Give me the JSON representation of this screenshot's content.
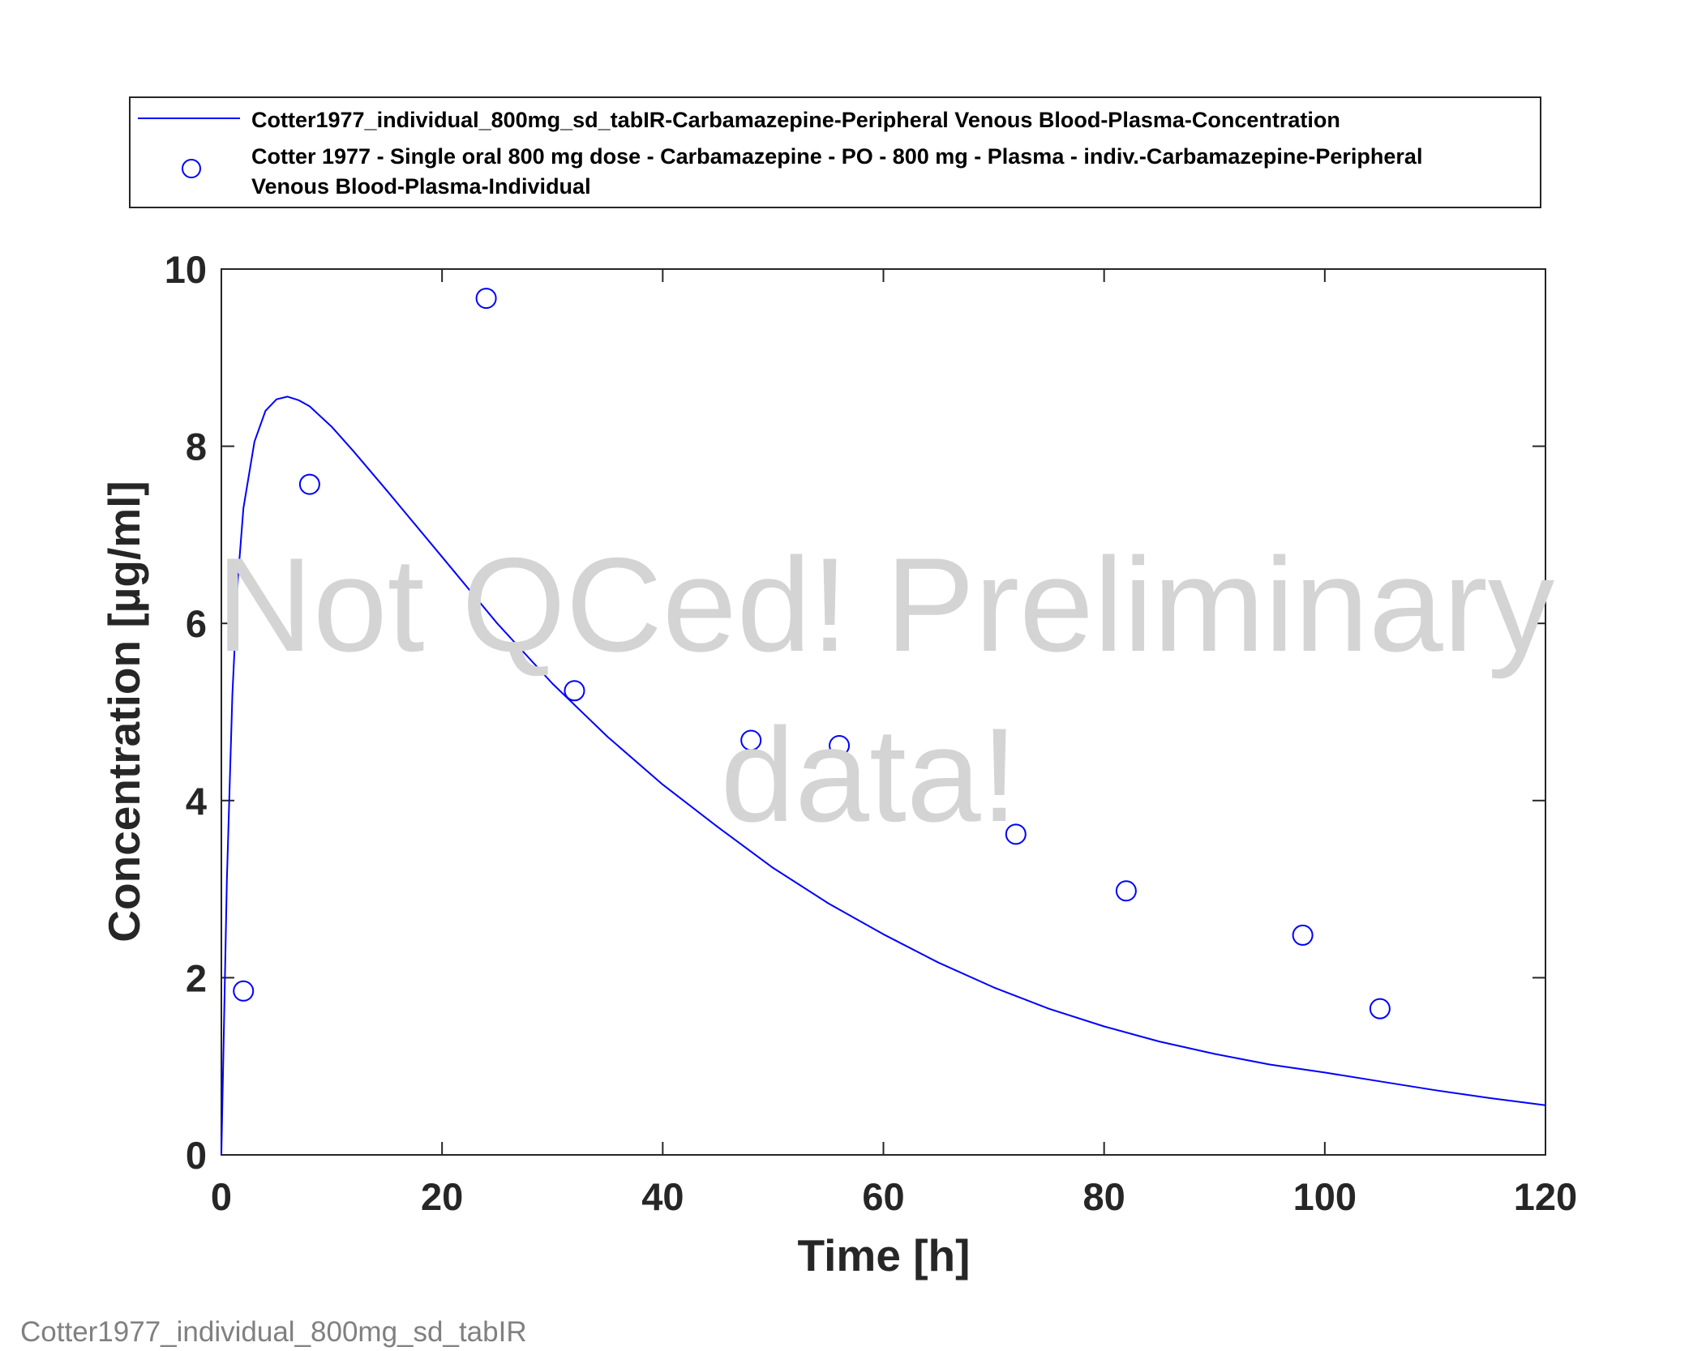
{
  "chart_data": {
    "type": "line",
    "title": "",
    "xlabel": "Time [h]",
    "ylabel": "Concentration [µg/ml]",
    "xlim": [
      0,
      120
    ],
    "ylim": [
      0,
      10
    ],
    "x_ticks": [
      "0",
      "20",
      "40",
      "60",
      "80",
      "100",
      "120"
    ],
    "y_ticks": [
      "0",
      "2",
      "4",
      "6",
      "8",
      "10"
    ],
    "grid": false,
    "legend_position": "top",
    "series": [
      {
        "name": "Cotter1977_individual_800mg_sd_tabIR-Carbamazepine-Peripheral Venous Blood-Plasma-Concentration",
        "style": "line",
        "color": "#0000ff",
        "x": [
          0,
          0.5,
          1,
          1.5,
          2,
          3,
          4,
          5,
          6,
          7,
          8,
          10,
          12,
          15,
          20,
          25,
          30,
          35,
          40,
          45,
          50,
          55,
          60,
          65,
          70,
          75,
          80,
          85,
          90,
          95,
          100,
          105,
          110,
          115,
          120
        ],
        "y": [
          0,
          3.1,
          5.2,
          6.5,
          7.3,
          8.05,
          8.4,
          8.53,
          8.56,
          8.52,
          8.45,
          8.22,
          7.94,
          7.5,
          6.75,
          6.0,
          5.32,
          4.72,
          4.18,
          3.7,
          3.24,
          2.84,
          2.49,
          2.17,
          1.89,
          1.65,
          1.45,
          1.28,
          1.14,
          1.02,
          0.93,
          0.83,
          0.73,
          0.64,
          0.56
        ]
      },
      {
        "name": "Cotter 1977 - Single oral 800 mg dose - Carbamazepine - PO - 800 mg - Plasma - indiv.-Carbamazepine-Peripheral Venous Blood-Plasma-Individual",
        "style": "marker-circle",
        "color": "#0000ff",
        "x": [
          2,
          8,
          24,
          32,
          48,
          56,
          72,
          82,
          98,
          105
        ],
        "y": [
          1.85,
          7.57,
          9.67,
          5.24,
          4.68,
          4.62,
          3.62,
          2.98,
          2.48,
          1.65
        ]
      }
    ],
    "legend": {
      "line_label_1": "Cotter1977_individual_800mg_sd_tabIR-Carbamazepine-Peripheral Venous Blood-Plasma-Concentration",
      "marker_label_1": "Cotter 1977 - Single oral 800 mg dose - Carbamazepine - PO - 800 mg - Plasma - indiv.-Carbamazepine-Peripheral",
      "marker_label_2": "Venous Blood-Plasma-Individual"
    },
    "watermark": {
      "line1": "Not QCed! Preliminary",
      "line2": "data!"
    },
    "footer": "Cotter1977_individual_800mg_sd_tabIR"
  }
}
